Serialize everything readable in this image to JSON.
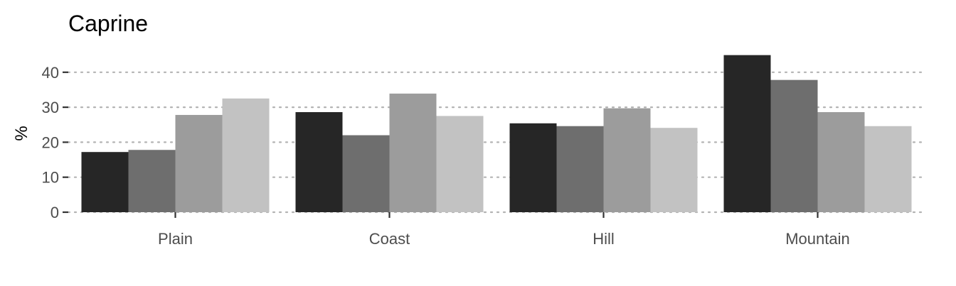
{
  "chart_data": {
    "type": "bar",
    "title": "Caprine",
    "xlabel": "",
    "ylabel": "%",
    "categories": [
      "Plain",
      "Coast",
      "Hill",
      "Mountain"
    ],
    "series": [
      {
        "values": [
          17.2,
          28.6,
          25.4,
          44.9
        ],
        "color": "#262626"
      },
      {
        "values": [
          17.8,
          22.0,
          24.6,
          37.8
        ],
        "color": "#6e6e6e"
      },
      {
        "values": [
          27.8,
          33.9,
          29.7,
          28.6
        ],
        "color": "#9c9c9c"
      },
      {
        "values": [
          32.5,
          27.5,
          24.1,
          24.6
        ],
        "color": "#c2c2c2"
      }
    ],
    "ylim": [
      0,
      46
    ],
    "yticks": [
      0,
      10,
      20,
      30,
      40
    ],
    "grid": true,
    "legend": "none"
  }
}
